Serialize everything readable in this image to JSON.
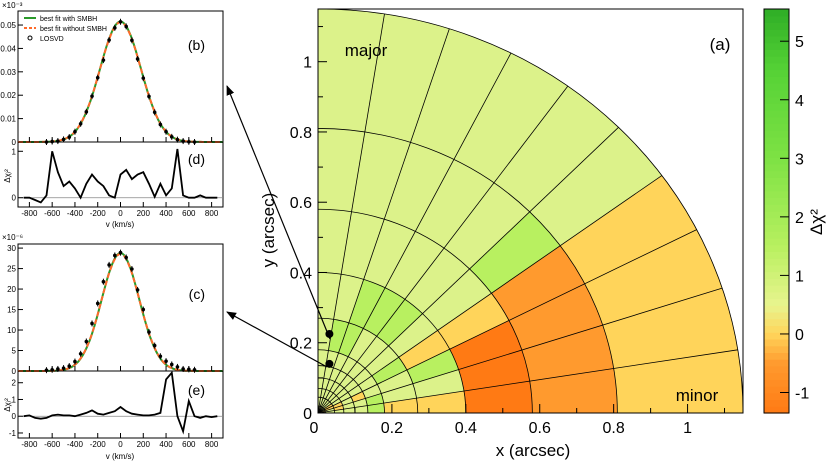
{
  "colors": {
    "scale": [
      "#ff7a14",
      "#ff9a2e",
      "#ffd45a",
      "#dcf28a",
      "#b8f060",
      "#8fe84a",
      "#5fdb3a",
      "#3cc42a"
    ],
    "fit_smbh": "#2a9a2a",
    "fit_nosmbh": "#ff6a2a",
    "grid": "#000000"
  },
  "chart_data": [
    {
      "id": "a",
      "type": "heatmap",
      "title": "(a)",
      "xlabel": "x (arcsec)",
      "ylabel": "y (arcsec)",
      "xlim": [
        0,
        1.15
      ],
      "ylim": [
        0,
        1.15
      ],
      "x_ticks": [
        "0",
        "0.2",
        "0.4",
        "0.6",
        "0.8",
        "1"
      ],
      "y_ticks": [
        "0",
        "0.2",
        "0.4",
        "0.6",
        "0.8",
        "1"
      ],
      "annotations": [
        "major",
        "minor"
      ],
      "colorbar": {
        "label": "Δχ²",
        "range": [
          -1.35,
          5.55
        ],
        "ticks": [
          "5",
          "4",
          "3",
          "2",
          "1",
          "0",
          "-1"
        ]
      },
      "radii": [
        0,
        0.02,
        0.045,
        0.07,
        0.1,
        0.135,
        0.18,
        0.27,
        0.4,
        0.58,
        0.81,
        1.15
      ],
      "angles_deg": [
        0,
        9,
        18,
        27,
        36,
        45,
        54,
        63,
        72,
        81,
        90
      ],
      "cells": [
        [
          2,
          2,
          3,
          3,
          3,
          3,
          3,
          3,
          3,
          3
        ],
        [
          3,
          3,
          2,
          2,
          3,
          3,
          3,
          3,
          3,
          3
        ],
        [
          3,
          2,
          2,
          3,
          3,
          3,
          3,
          3,
          3,
          3
        ],
        [
          3,
          3,
          3,
          3,
          3,
          3,
          3,
          3,
          3,
          3
        ],
        [
          3,
          3,
          2,
          3,
          3,
          3,
          3,
          3,
          3,
          3
        ],
        [
          4,
          4,
          3,
          3,
          3,
          3,
          3,
          3,
          3,
          3
        ],
        [
          2,
          3,
          3,
          4,
          3,
          3,
          3,
          4,
          4,
          3
        ],
        [
          2,
          3,
          4,
          2,
          3,
          4,
          4,
          4,
          3,
          3
        ],
        [
          0,
          0,
          0,
          2,
          3,
          3,
          3,
          3,
          3,
          3
        ],
        [
          1,
          1,
          1,
          1,
          4,
          3,
          3,
          3,
          3,
          3
        ],
        [
          2,
          2,
          2,
          2,
          3,
          3,
          3,
          3,
          3,
          3
        ]
      ],
      "cell_values": [
        [
          1.5,
          1.5,
          2.0,
          2.0,
          2.0,
          2.0,
          2.0,
          2.0,
          2.0,
          2.0
        ],
        [
          2.0,
          2.0,
          1.5,
          1.5,
          2.0,
          2.0,
          2.0,
          2.0,
          2.0,
          2.0
        ],
        [
          2.0,
          1.5,
          1.5,
          2.0,
          2.0,
          2.0,
          2.0,
          2.0,
          2.0,
          2.0
        ],
        [
          2.0,
          2.0,
          2.0,
          2.0,
          2.0,
          2.0,
          2.0,
          2.0,
          2.0,
          2.0
        ],
        [
          2.0,
          2.0,
          1.5,
          2.0,
          2.0,
          2.0,
          2.0,
          2.0,
          2.0,
          2.0
        ],
        [
          2.5,
          2.5,
          2.0,
          2.0,
          2.0,
          2.0,
          2.0,
          2.0,
          2.0,
          2.0
        ],
        [
          0.5,
          2.0,
          2.0,
          2.5,
          2.0,
          2.0,
          2.0,
          2.5,
          2.5,
          2.0
        ],
        [
          0.5,
          2.0,
          2.5,
          0.5,
          2.0,
          2.5,
          2.5,
          2.5,
          2.0,
          2.0
        ],
        [
          -1.2,
          -1.2,
          -1.2,
          0.5,
          2.0,
          2.0,
          2.0,
          2.0,
          2.0,
          2.0
        ],
        [
          -0.2,
          -0.2,
          -0.2,
          -0.2,
          2.5,
          2.0,
          2.0,
          2.0,
          2.0,
          2.0
        ],
        [
          0.5,
          0.5,
          0.5,
          0.5,
          2.0,
          2.0,
          2.0,
          2.0,
          2.0,
          2.0
        ]
      ],
      "markers": [
        {
          "x": 0.02,
          "y": 0.225,
          "label": "(b)"
        },
        {
          "x": 0.02,
          "y": 0.14,
          "label": "(c)"
        }
      ]
    },
    {
      "id": "b",
      "type": "line",
      "title": "(b)",
      "exponent": "×10⁻³",
      "xlim": [
        -900,
        900
      ],
      "ylim": [
        0,
        0.056
      ],
      "y_ticks": [
        "0",
        "0.01",
        "0.02",
        "0.03",
        "0.04",
        "0.05"
      ],
      "legend": [
        "best fit with SMBH",
        "best fit without SMBH",
        "LOSVD"
      ],
      "series": [
        {
          "name": "best fit with SMBH",
          "center": 0,
          "sigma": 180,
          "amp": 0.0515
        },
        {
          "name": "best fit without SMBH",
          "center": 0,
          "sigma": 181,
          "amp": 0.0512
        }
      ],
      "points_x": [
        -650,
        -600,
        -550,
        -500,
        -450,
        -400,
        -350,
        -300,
        -250,
        -200,
        -150,
        -100,
        -50,
        0,
        50,
        100,
        150,
        200,
        250,
        300,
        350,
        400,
        450,
        500,
        550,
        600,
        650
      ],
      "points_y": [
        0.0,
        0.0002,
        0.0004,
        0.0011,
        0.0021,
        0.0044,
        0.0078,
        0.0129,
        0.0196,
        0.0275,
        0.035,
        0.0436,
        0.0488,
        0.0514,
        0.0494,
        0.0435,
        0.0355,
        0.0273,
        0.0195,
        0.0127,
        0.0075,
        0.0044,
        0.0022,
        0.001,
        0.0004,
        0.0001,
        0.0
      ]
    },
    {
      "id": "d",
      "type": "line",
      "title": "(d)",
      "xlabel": "v (km/s)",
      "ylabel": "Δχᵢ²",
      "xlim": [
        -900,
        900
      ],
      "ylim": [
        -0.2,
        1.2
      ],
      "y_ticks": [
        "0",
        "1"
      ],
      "x_ticks": [
        "-800",
        "-600",
        "-400",
        "-200",
        "0",
        "200",
        "400",
        "600",
        "800"
      ],
      "x": [
        -850,
        -800,
        -750,
        -700,
        -650,
        -600,
        -550,
        -500,
        -450,
        -400,
        -350,
        -300,
        -250,
        -200,
        -150,
        -100,
        -50,
        0,
        50,
        100,
        150,
        200,
        250,
        300,
        350,
        400,
        450,
        500,
        550,
        600,
        650,
        700,
        750,
        800,
        850
      ],
      "values": [
        0.0,
        0.0,
        -0.05,
        -0.1,
        0.05,
        1.0,
        0.55,
        0.25,
        0.35,
        0.2,
        0.0,
        0.3,
        0.5,
        0.35,
        0.25,
        0.05,
        0.0,
        0.5,
        0.6,
        0.4,
        0.5,
        0.55,
        0.3,
        0.02,
        0.3,
        0.05,
        0.2,
        1.05,
        0.05,
        0.0,
        0.0,
        0.05,
        0.0,
        0.0,
        0.0
      ]
    },
    {
      "id": "c",
      "type": "line",
      "title": "(c)",
      "exponent": "×10⁻⁶",
      "xlim": [
        -900,
        900
      ],
      "ylim": [
        0,
        31
      ],
      "y_ticks": [
        "0",
        "5",
        "10",
        "15",
        "20",
        "25",
        "30"
      ],
      "series": [
        {
          "name": "best fit with SMBH",
          "center": 0,
          "sigma": 165,
          "amp": 28.8
        },
        {
          "name": "best fit without SMBH",
          "center": 0,
          "sigma": 166,
          "amp": 28.6
        }
      ],
      "points_x": [
        -650,
        -600,
        -550,
        -500,
        -450,
        -400,
        -350,
        -300,
        -250,
        -200,
        -150,
        -100,
        -50,
        0,
        50,
        100,
        150,
        200,
        250,
        300,
        350,
        400,
        450,
        500,
        550,
        600,
        650
      ],
      "points_y": [
        0.2,
        0.3,
        0.5,
        0.7,
        1.2,
        2.3,
        4.2,
        7.2,
        11.6,
        16.5,
        21.8,
        25.9,
        28.2,
        28.9,
        27.7,
        24.9,
        19.8,
        15.0,
        9.5,
        6.2,
        3.6,
        2.4,
        1.6,
        1.0,
        0.5,
        0.4,
        0.3
      ]
    },
    {
      "id": "e",
      "type": "line",
      "title": "(e)",
      "xlabel": "v (km/s)",
      "ylabel": "Δχᵢ²",
      "xlim": [
        -900,
        900
      ],
      "ylim": [
        -1.3,
        2.7
      ],
      "y_ticks": [
        "-1",
        "0",
        "1",
        "2"
      ],
      "x_ticks": [
        "-800",
        "-600",
        "-400",
        "-200",
        "0",
        "200",
        "400",
        "600",
        "800"
      ],
      "x": [
        -850,
        -800,
        -750,
        -700,
        -650,
        -600,
        -550,
        -500,
        -450,
        -400,
        -350,
        -300,
        -250,
        -200,
        -150,
        -100,
        -50,
        0,
        50,
        100,
        150,
        200,
        250,
        300,
        350,
        400,
        450,
        500,
        550,
        600,
        650,
        700,
        750,
        800,
        850
      ],
      "values": [
        0.0,
        0.05,
        -0.1,
        -0.15,
        -0.1,
        0.05,
        0.1,
        0.05,
        0.05,
        0.0,
        0.1,
        0.2,
        0.35,
        0.15,
        0.1,
        0.2,
        0.3,
        0.55,
        0.3,
        0.15,
        0.1,
        0.05,
        0.05,
        0.1,
        0.2,
        2.2,
        2.6,
        0.0,
        -0.9,
        0.9,
        0.0,
        -0.1,
        0.0,
        -0.05,
        0.0
      ]
    }
  ]
}
